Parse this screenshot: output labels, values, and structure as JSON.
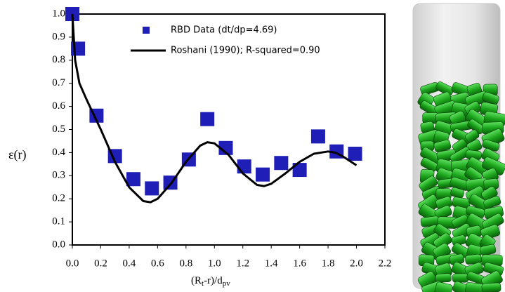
{
  "chart_data": {
    "type": "scatter",
    "y_label": "ε(r)",
    "x_label": [
      "(R",
      "t",
      "-r)/d",
      "pv"
    ],
    "xlim": [
      0,
      2.2
    ],
    "xticks": [
      {
        "value": 0,
        "label": "0.0"
      },
      0.2,
      0.4,
      0.6,
      0.8,
      {
        "value": 1,
        "label": "1.0"
      },
      1.2,
      1.4,
      1.6,
      1.8,
      {
        "value": 2,
        "label": "2.0"
      },
      2.2
    ],
    "ylim": [
      0,
      1
    ],
    "yticks": [
      {
        "value": 0,
        "label": "0.0"
      },
      0.1,
      0.2,
      0.3,
      0.4,
      0.5,
      0.6,
      0.7,
      0.8,
      0.9,
      {
        "value": 1,
        "label": "1.0"
      }
    ],
    "grid": false,
    "series": [
      {
        "name": "RBD Data (dt/dp=4.69)",
        "type": "scatter",
        "color": "#1f1fb8",
        "x": [
          0.0,
          0.04,
          0.17,
          0.3,
          0.43,
          0.56,
          0.69,
          0.82,
          0.95,
          1.08,
          1.21,
          1.34,
          1.47,
          1.6,
          1.73,
          1.86,
          1.99
        ],
        "values": [
          1.0,
          0.85,
          0.56,
          0.385,
          0.285,
          0.245,
          0.27,
          0.37,
          0.545,
          0.42,
          0.34,
          0.305,
          0.355,
          0.325,
          0.47,
          0.405,
          0.395
        ]
      },
      {
        "name": "Roshani (1990); R-squared=0.90",
        "type": "line",
        "color": "#000000",
        "x": [
          0.0,
          0.02,
          0.05,
          0.1,
          0.2,
          0.3,
          0.4,
          0.5,
          0.55,
          0.6,
          0.7,
          0.8,
          0.9,
          0.95,
          1.0,
          1.1,
          1.2,
          1.3,
          1.35,
          1.4,
          1.5,
          1.6,
          1.7,
          1.8,
          1.85,
          1.9,
          2.0
        ],
        "values": [
          1.0,
          0.8,
          0.7,
          0.63,
          0.5,
          0.36,
          0.25,
          0.19,
          0.185,
          0.2,
          0.27,
          0.36,
          0.43,
          0.445,
          0.44,
          0.39,
          0.31,
          0.26,
          0.255,
          0.265,
          0.31,
          0.36,
          0.395,
          0.405,
          0.4,
          0.385,
          0.345
        ]
      }
    ]
  }
}
